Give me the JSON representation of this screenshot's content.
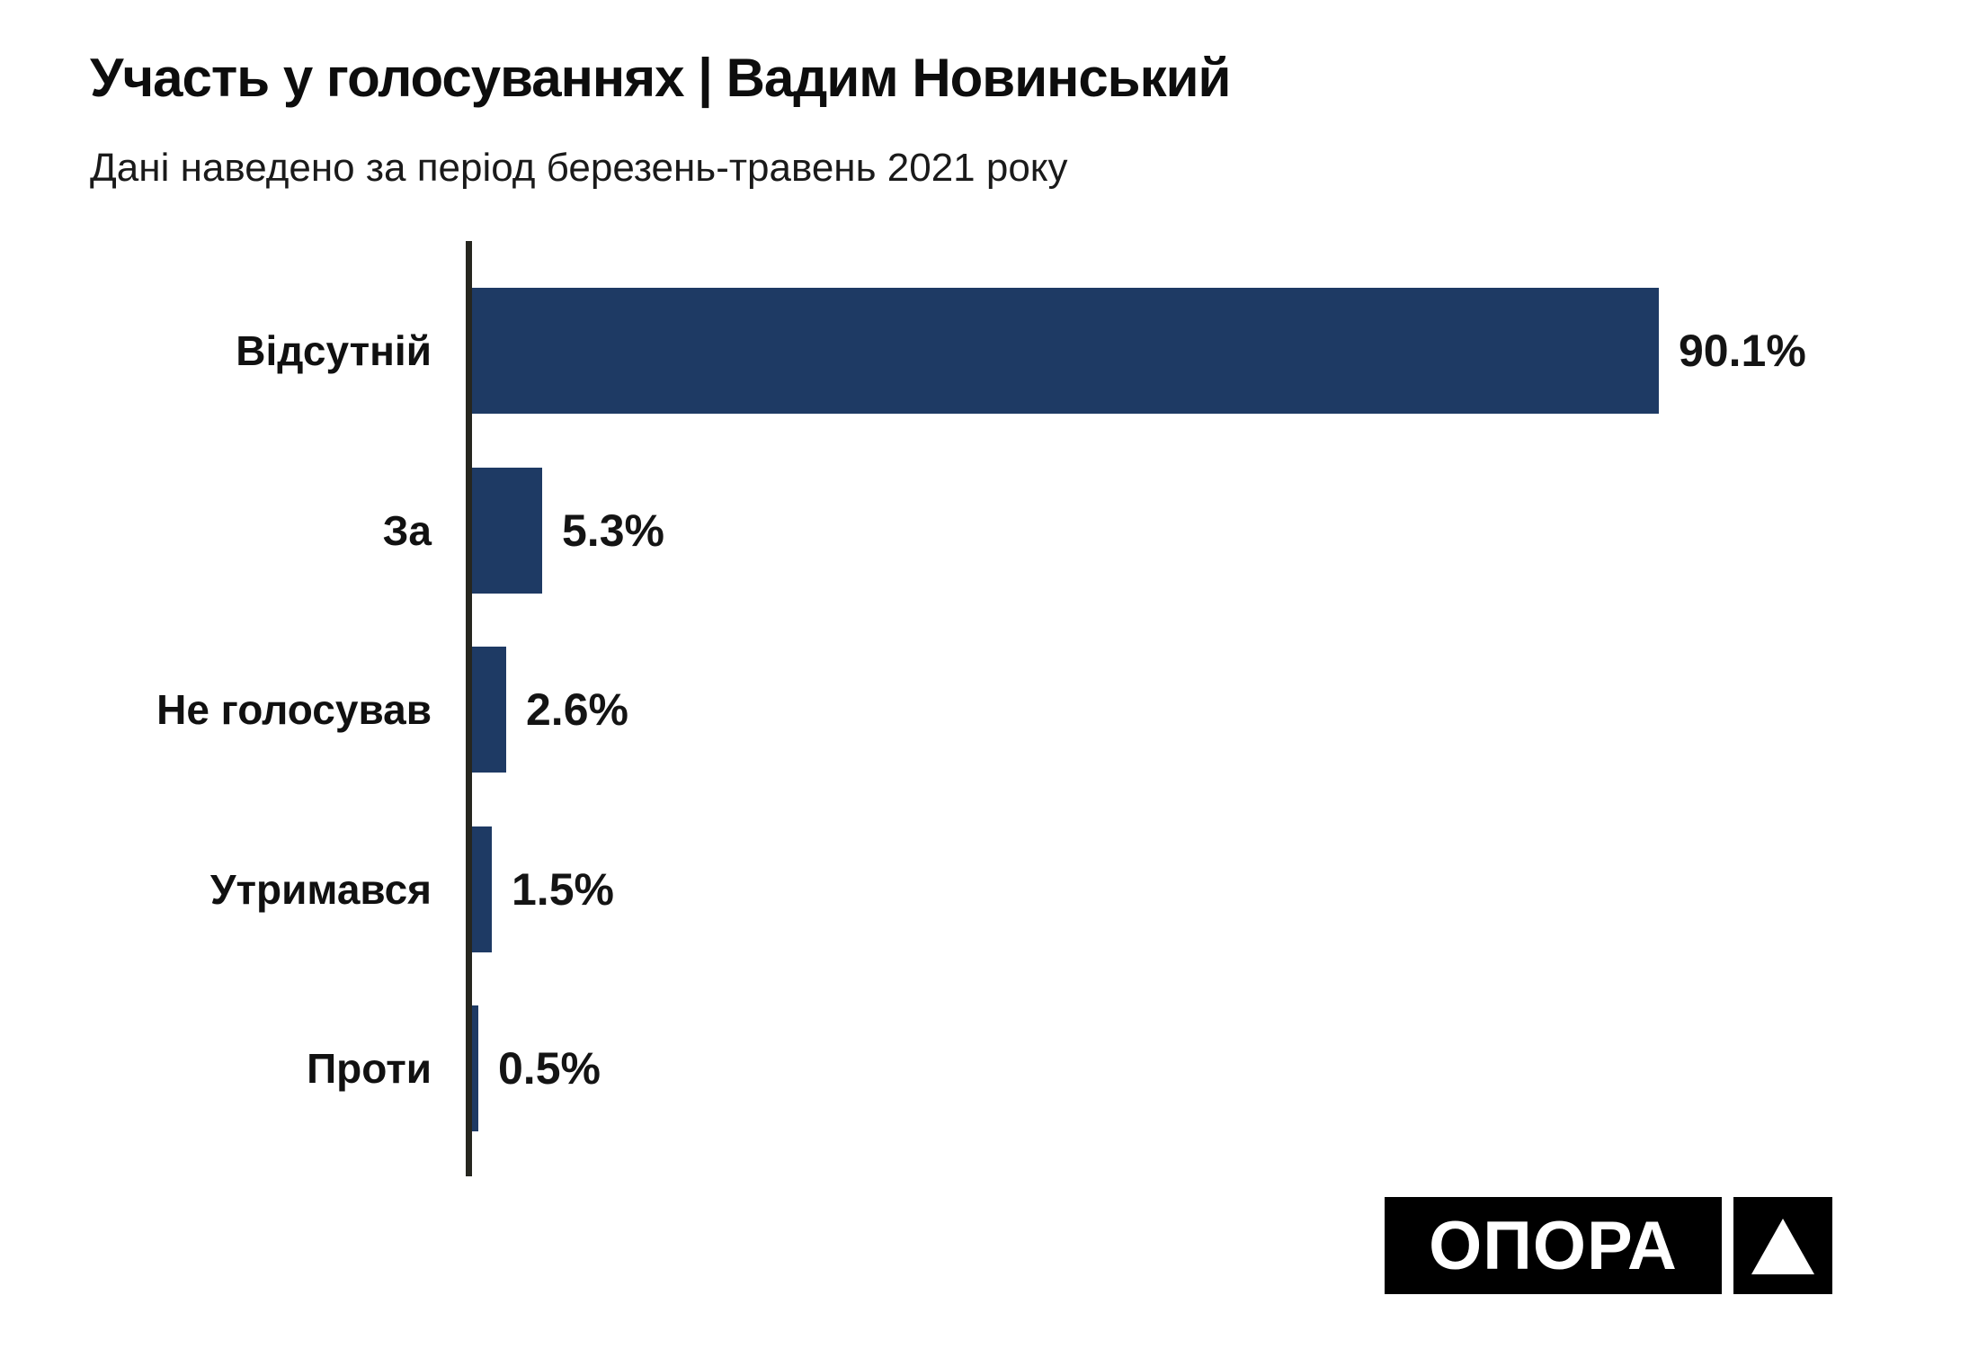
{
  "header": {
    "title": "Участь у голосуваннях | Вадим Новинський",
    "subtitle": "Дані наведено за період березень-травень 2021 року"
  },
  "chart_data": {
    "type": "bar",
    "orientation": "horizontal",
    "title": "Участь у голосуваннях | Вадим Новинський",
    "subtitle": "Дані наведено за період березень-травень 2021 року",
    "categories": [
      "Відсутній",
      "За",
      "Не голосував",
      "Утримався",
      "Проти"
    ],
    "values": [
      90.1,
      5.3,
      2.6,
      1.5,
      0.5
    ],
    "value_labels": [
      "90.1%",
      "5.3%",
      "2.6%",
      "1.5%",
      "0.5%"
    ],
    "xlabel": "",
    "ylabel": "",
    "xlim": [
      0,
      100
    ],
    "grid": false,
    "legend": false,
    "bar_color": "#1e3a64",
    "axis_color": "#26261f"
  },
  "logo": {
    "text": "ОПОРА",
    "symbol": "triangle",
    "bg_color": "#000000",
    "fg_color": "#ffffff"
  }
}
